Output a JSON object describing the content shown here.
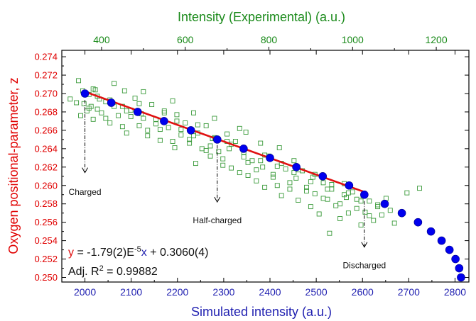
{
  "chart_data": {
    "type": "scatter",
    "xlabel_bottom": "Simulated intensity (a.u.)",
    "xlabel_top": "Intensity (Experimental) (a.u.)",
    "ylabel": "Oxygen positional-parameter, z",
    "xlim_bottom": [
      1950,
      2830
    ],
    "xlim_top": [
      305,
      1278
    ],
    "ylim": [
      0.2495,
      0.2747
    ],
    "x_ticks_bottom": [
      2000,
      2100,
      2200,
      2300,
      2400,
      2500,
      2600,
      2700,
      2800
    ],
    "x_ticks_top": [
      400,
      600,
      800,
      1000,
      1200
    ],
    "y_ticks": [
      0.25,
      0.252,
      0.254,
      0.256,
      0.258,
      0.26,
      0.262,
      0.264,
      0.266,
      0.268,
      0.27,
      0.272,
      0.274
    ],
    "grid": false,
    "colors": {
      "simulated": "#0000ee",
      "experimental": "#3a9a3a",
      "fit": "#e01010",
      "bottom_axis": "#1f1fb0",
      "top_axis": "#1a8a1a",
      "left_axis": "#e00000"
    },
    "series": [
      {
        "marker": "filled-circle",
        "axis": "bottom",
        "x": [
          2000,
          2057,
          2114,
          2171,
          2229,
          2286,
          2343,
          2400,
          2457,
          2514,
          2571,
          2604,
          2648,
          2685,
          2720,
          2748,
          2771,
          2788,
          2801,
          2809,
          2813
        ],
        "y": [
          0.27,
          0.269,
          0.268,
          0.267,
          0.266,
          0.265,
          0.264,
          0.263,
          0.262,
          0.261,
          0.26,
          0.259,
          0.258,
          0.257,
          0.256,
          0.255,
          0.254,
          0.253,
          0.252,
          0.251,
          0.25
        ]
      },
      {
        "marker": "open-square",
        "axis": "top",
        "x": [
          325,
          340,
          345,
          350,
          355,
          358,
          365,
          370,
          375,
          380,
          385,
          390,
          395,
          400,
          410,
          420,
          430,
          440,
          450,
          455,
          460,
          470,
          480,
          490,
          495,
          500,
          510,
          520,
          530,
          540,
          550,
          560,
          570,
          575,
          580,
          590,
          600,
          610,
          620,
          625,
          630,
          640,
          650,
          660,
          665,
          670,
          680,
          690,
          700,
          705,
          710,
          720,
          730,
          740,
          745,
          750,
          760,
          770,
          780,
          785,
          790,
          800,
          810,
          820,
          825,
          830,
          840,
          850,
          860,
          865,
          870,
          880,
          890,
          900,
          905,
          910,
          920,
          930,
          940,
          945,
          950,
          960,
          970,
          980,
          985,
          990,
          1000,
          1010,
          1020,
          1025,
          1030,
          1040,
          1050,
          1060,
          1070,
          1080,
          1090,
          1100,
          1130,
          1160,
          370,
          390,
          410,
          430,
          450,
          470,
          490,
          510,
          530,
          550,
          570,
          590,
          610,
          630,
          650,
          670,
          690,
          710,
          730,
          750,
          770,
          790,
          810,
          830,
          850,
          870,
          890,
          910,
          930,
          950,
          970,
          990,
          1010,
          1040,
          1060,
          380,
          420,
          460,
          500,
          540,
          580,
          620,
          660,
          700,
          740,
          780,
          820,
          860,
          900,
          940,
          980,
          1020
        ],
        "y": [
          0.2694,
          0.269,
          0.2714,
          0.2676,
          0.2703,
          0.2689,
          0.2681,
          0.2699,
          0.2686,
          0.2672,
          0.2704,
          0.2683,
          0.2694,
          0.2679,
          0.2691,
          0.2668,
          0.2711,
          0.2676,
          0.2686,
          0.2703,
          0.2657,
          0.2682,
          0.2695,
          0.2665,
          0.2678,
          0.2702,
          0.266,
          0.2688,
          0.2672,
          0.2649,
          0.2681,
          0.2663,
          0.2692,
          0.2641,
          0.2677,
          0.2655,
          0.2668,
          0.2646,
          0.2679,
          0.2624,
          0.2657,
          0.264,
          0.2665,
          0.2632,
          0.2651,
          0.2673,
          0.2637,
          0.2622,
          0.2656,
          0.264,
          0.2619,
          0.2648,
          0.2614,
          0.2636,
          0.2658,
          0.2611,
          0.2627,
          0.2605,
          0.2646,
          0.262,
          0.2598,
          0.2632,
          0.2612,
          0.26,
          0.2641,
          0.2589,
          0.2618,
          0.2596,
          0.2627,
          0.2608,
          0.2584,
          0.2616,
          0.2598,
          0.2577,
          0.2609,
          0.2591,
          0.2569,
          0.2603,
          0.2585,
          0.2548,
          0.2596,
          0.2578,
          0.2564,
          0.2602,
          0.2587,
          0.257,
          0.2593,
          0.2575,
          0.2557,
          0.2589,
          0.2571,
          0.2583,
          0.2562,
          0.2577,
          0.2568,
          0.2586,
          0.2573,
          0.2559,
          0.2592,
          0.2597,
          0.2684,
          0.2697,
          0.2673,
          0.2686,
          0.2664,
          0.2675,
          0.2689,
          0.2654,
          0.2667,
          0.2679,
          0.2648,
          0.2661,
          0.265,
          0.2666,
          0.2638,
          0.2652,
          0.2629,
          0.2645,
          0.2662,
          0.2625,
          0.2617,
          0.2633,
          0.2609,
          0.2624,
          0.2603,
          0.2617,
          0.2594,
          0.2612,
          0.2586,
          0.2601,
          0.258,
          0.2592,
          0.2585,
          0.2567,
          0.2579,
          0.2705,
          0.2693,
          0.2681,
          0.2673,
          0.2661,
          0.267,
          0.2654,
          0.2643,
          0.2648,
          0.2631,
          0.2627,
          0.2621,
          0.2614,
          0.2604,
          0.2596,
          0.259,
          0.2583
        ]
      },
      {
        "marker": "line",
        "axis": "bottom",
        "x": [
          2000,
          2604
        ],
        "y": [
          0.2702,
          0.2593
        ]
      }
    ],
    "annotations": [
      {
        "text": "Charged",
        "x": 2000,
        "y_from": 0.2693,
        "y_to": 0.2614,
        "label_y": 0.2593
      },
      {
        "text": "Half-charged",
        "x": 2286,
        "y_from": 0.2644,
        "y_to": 0.2582,
        "label_y": 0.2562
      },
      {
        "text": "Discharged",
        "x": 2604,
        "y_from": 0.2583,
        "y_to": 0.2533,
        "label_y": 0.2513
      }
    ],
    "equation": {
      "y": "y",
      "rest1": " = -1.79(2)E",
      "sup": "-5",
      "x": "x",
      "rest2": " + 0.3060(4)"
    },
    "r2": {
      "label": "Adj. R",
      "sup": "2",
      "value": " = 0.99882"
    }
  }
}
